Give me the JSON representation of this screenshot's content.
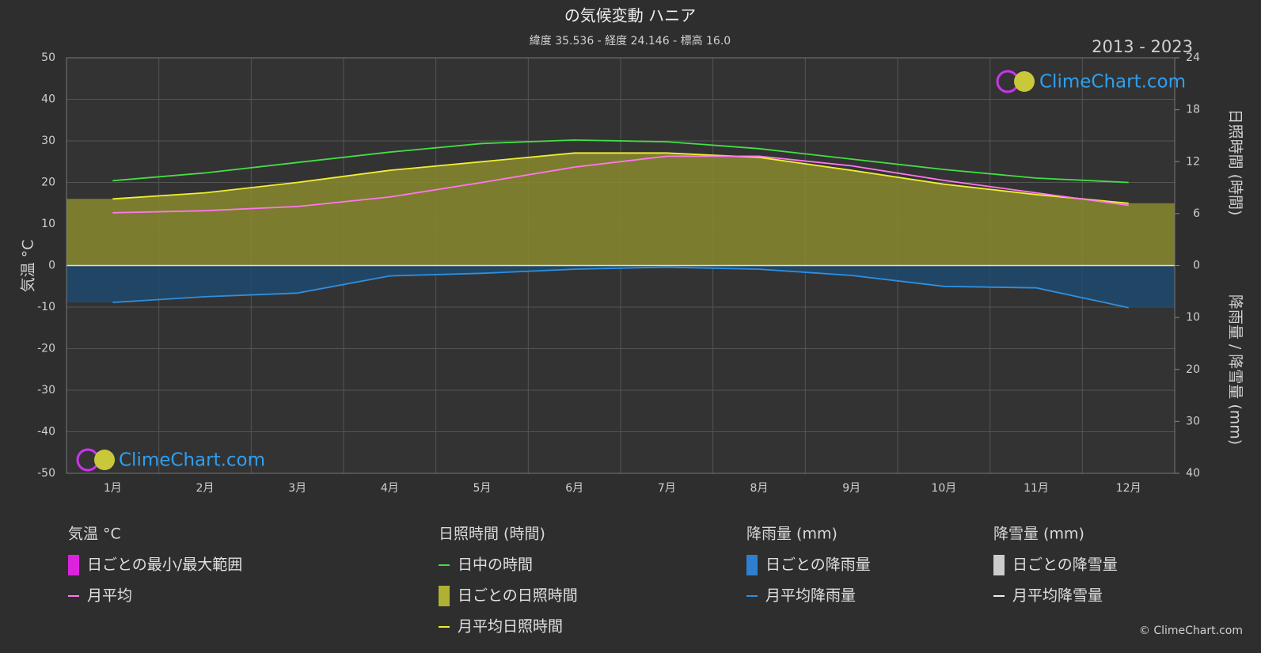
{
  "chart_data": {
    "type": "line",
    "title": "の気候変動 ハニア",
    "subtitle": "緯度 35.536 - 経度 24.146 - 標高 16.0",
    "period": "2013 - 2023",
    "ylabel": "気温 °C",
    "y2label": "日照時間 (時間)",
    "y3label": "降雨量 / 降雪量 (mm)",
    "watermark": "ClimeChart.com",
    "copyright": "© ClimeChart.com",
    "categories": [
      "1月",
      "2月",
      "3月",
      "4月",
      "5月",
      "6月",
      "7月",
      "8月",
      "9月",
      "10月",
      "11月",
      "12月"
    ],
    "ylim": [
      -50,
      50
    ],
    "yticks": [
      -50,
      -40,
      -30,
      -20,
      -10,
      0,
      10,
      20,
      30,
      40,
      50
    ],
    "y2lim": [
      0,
      24
    ],
    "y2ticks": [
      0,
      6,
      12,
      18,
      24
    ],
    "y3lim": [
      0,
      40
    ],
    "y3ticks": [
      10,
      20,
      30,
      40
    ],
    "grid": true,
    "series": [
      {
        "name": "日中の時間",
        "color": "#44dd44",
        "axis": "y2",
        "values": [
          9.8,
          10.7,
          11.9,
          13.1,
          14.1,
          14.5,
          14.3,
          13.5,
          12.3,
          11.1,
          10.1,
          9.6
        ]
      },
      {
        "name": "月平均日照時間",
        "color": "#eeee33",
        "axis": "y2",
        "fill": "#8a8a2e",
        "values": [
          7.7,
          8.4,
          9.6,
          11.0,
          12.0,
          13.0,
          13.0,
          12.5,
          11.0,
          9.4,
          8.2,
          7.2
        ]
      },
      {
        "name": "月平均",
        "color": "#ff77ee",
        "axis": "y",
        "values": [
          12.7,
          13.2,
          14.2,
          16.5,
          20.0,
          23.7,
          26.3,
          26.3,
          24.0,
          20.5,
          17.5,
          14.5
        ]
      },
      {
        "name": "月平均降雨量",
        "color": "#2f8fdf",
        "axis": "y3",
        "fill": "#1f4a6e",
        "values": [
          7.1,
          6.0,
          5.3,
          2.0,
          1.5,
          0.7,
          0.3,
          0.7,
          1.9,
          4.0,
          4.3,
          8.1
        ]
      }
    ],
    "legend_groups": [
      {
        "title": "気温 °C",
        "items": [
          "日ごとの最小/最大範囲"
        ]
      },
      {
        "title": "日照時間 (時間)",
        "items": [
          "日ごとの日照時間"
        ]
      },
      {
        "title": "降雨量 (mm)",
        "items": [
          "日ごとの降雨量"
        ]
      },
      {
        "title": "降雪量 (mm)",
        "items": [
          "日ごとの降雪量",
          "月平均降雪量"
        ]
      }
    ]
  }
}
